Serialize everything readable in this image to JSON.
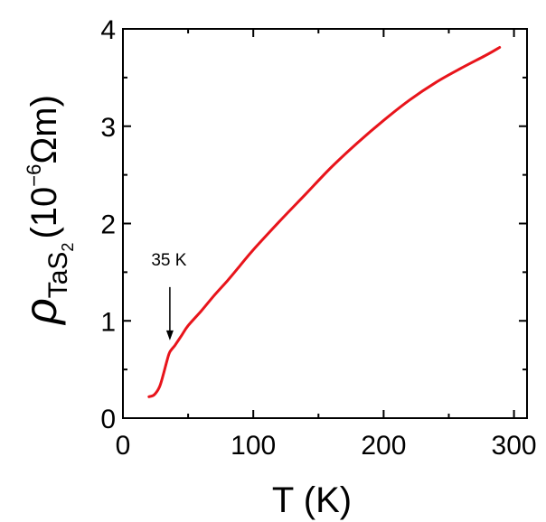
{
  "chart_data": {
    "type": "line",
    "xlabel": "T (K)",
    "ylabel": {
      "symbol": "ρ",
      "subscript_main": "TaS",
      "subscript_index": "2",
      "unit_open": "(10",
      "unit_exponent": "−6",
      "unit_close": "Ωm)"
    },
    "xlim": [
      0,
      310
    ],
    "ylim": [
      0,
      4
    ],
    "xticks": [
      "0",
      "100",
      "200",
      "300"
    ],
    "yticks": [
      "0",
      "1",
      "2",
      "3",
      "4"
    ],
    "grid": false,
    "series": [
      {
        "color": "#e8141b",
        "x": [
          20,
          24,
          28,
          31,
          34,
          36,
          40,
          45,
          50,
          60,
          70,
          80,
          90,
          100,
          120,
          140,
          160,
          180,
          200,
          220,
          240,
          260,
          280,
          289
        ],
        "y": [
          0.22,
          0.24,
          0.32,
          0.45,
          0.6,
          0.68,
          0.75,
          0.85,
          0.95,
          1.1,
          1.26,
          1.41,
          1.57,
          1.73,
          2.02,
          2.3,
          2.58,
          2.83,
          3.06,
          3.27,
          3.45,
          3.6,
          3.74,
          3.81
        ]
      }
    ],
    "annotation": {
      "text": "35 K",
      "x": 36,
      "y": 0.79
    }
  }
}
